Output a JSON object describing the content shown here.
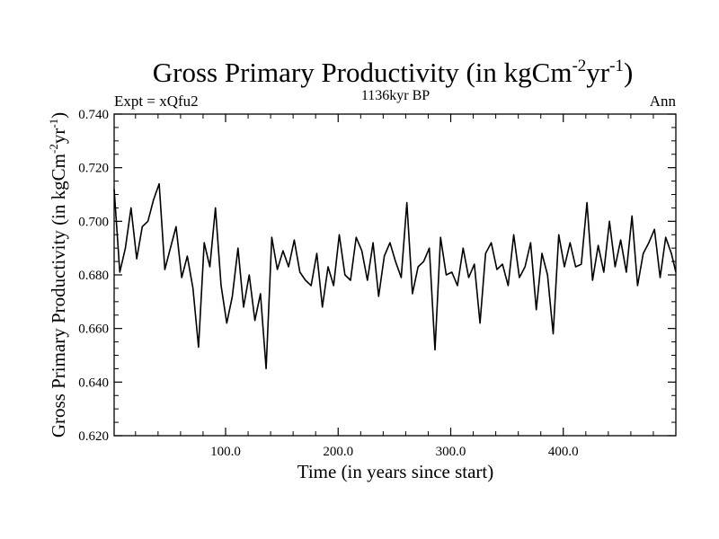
{
  "chart_data": {
    "type": "line",
    "title_main": "Gross Primary Productivity (in kgCm",
    "title_sup1": "-2",
    "title_mid": "yr",
    "title_sup2": "-1",
    "title_end": ")",
    "left_label": "Expt = xQfu2",
    "center_label": "1136kyr BP",
    "right_label": "Ann",
    "xlabel": "Time (in years since start)",
    "ylabel_main": "Gross Primary Productivity (in kgCm",
    "ylabel_sup1": "-2",
    "ylabel_mid": "yr",
    "ylabel_sup2": "-1",
    "ylabel_end": ")",
    "xlim": [
      1,
      500
    ],
    "ylim": [
      0.62,
      0.74
    ],
    "xticks": [
      100,
      200,
      300,
      400
    ],
    "xtick_labels": [
      "100.0",
      "200.0",
      "300.0",
      "400.0"
    ],
    "yticks": [
      0.62,
      0.64,
      0.66,
      0.68,
      0.7,
      0.72,
      0.74
    ],
    "ytick_labels": [
      "0.620",
      "0.640",
      "0.660",
      "0.680",
      "0.700",
      "0.720",
      "0.740"
    ],
    "series": [
      {
        "name": "Gross Primary Productivity",
        "color": "#000000",
        "x": [
          1,
          6,
          11,
          16,
          21,
          26,
          31,
          36,
          41,
          46,
          51,
          56,
          61,
          66,
          71,
          76,
          81,
          86,
          91,
          96,
          101,
          106,
          111,
          116,
          121,
          126,
          131,
          136,
          141,
          146,
          151,
          156,
          161,
          166,
          171,
          176,
          181,
          186,
          191,
          196,
          201,
          206,
          211,
          216,
          221,
          226,
          231,
          236,
          241,
          246,
          251,
          256,
          261,
          266,
          271,
          276,
          281,
          286,
          291,
          296,
          301,
          306,
          311,
          316,
          321,
          326,
          331,
          336,
          341,
          346,
          351,
          356,
          361,
          366,
          371,
          376,
          381,
          386,
          391,
          396,
          401,
          406,
          411,
          416,
          421,
          426,
          431,
          436,
          441,
          446,
          451,
          456,
          461,
          466,
          471,
          476,
          481,
          486,
          491,
          496,
          500
        ],
        "values": [
          0.712,
          0.681,
          0.69,
          0.705,
          0.686,
          0.698,
          0.7,
          0.708,
          0.714,
          0.682,
          0.69,
          0.698,
          0.679,
          0.687,
          0.675,
          0.653,
          0.692,
          0.683,
          0.705,
          0.676,
          0.662,
          0.672,
          0.69,
          0.668,
          0.68,
          0.663,
          0.673,
          0.645,
          0.694,
          0.682,
          0.689,
          0.683,
          0.693,
          0.681,
          0.678,
          0.676,
          0.688,
          0.668,
          0.683,
          0.676,
          0.695,
          0.68,
          0.678,
          0.694,
          0.689,
          0.678,
          0.692,
          0.672,
          0.687,
          0.692,
          0.685,
          0.679,
          0.707,
          0.673,
          0.683,
          0.685,
          0.69,
          0.652,
          0.694,
          0.68,
          0.681,
          0.676,
          0.69,
          0.679,
          0.684,
          0.662,
          0.688,
          0.692,
          0.682,
          0.684,
          0.676,
          0.695,
          0.679,
          0.683,
          0.692,
          0.667,
          0.688,
          0.68,
          0.658,
          0.695,
          0.683,
          0.692,
          0.683,
          0.684,
          0.707,
          0.678,
          0.691,
          0.681,
          0.7,
          0.683,
          0.693,
          0.681,
          0.702,
          0.676,
          0.688,
          0.692,
          0.697,
          0.679,
          0.694,
          0.688,
          0.681
        ]
      }
    ]
  }
}
